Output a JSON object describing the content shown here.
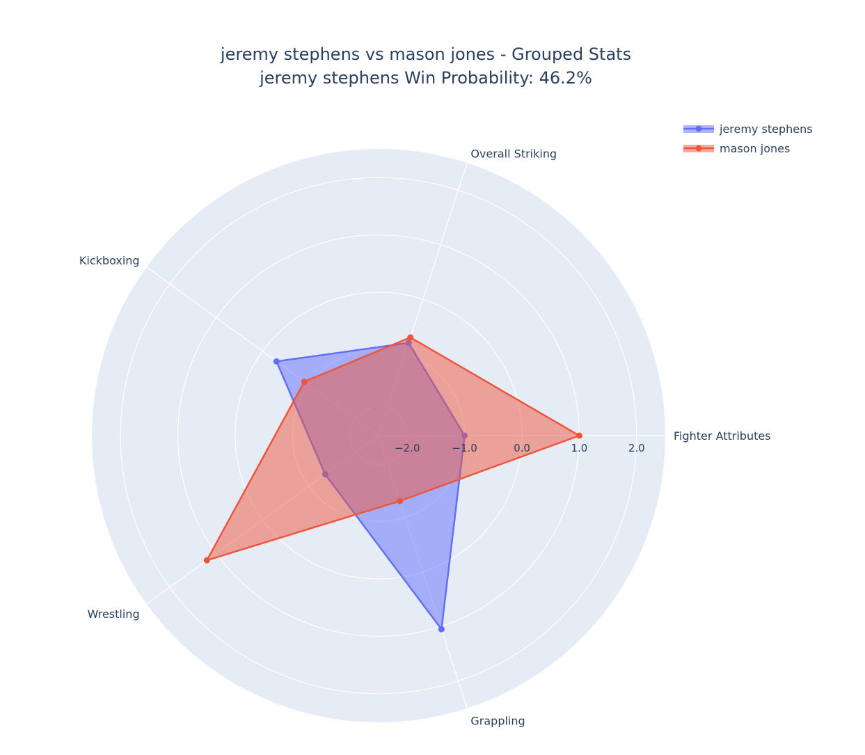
{
  "chart_data": {
    "type": "radar",
    "title": "jeremy stephens vs mason jones - Grouped Stats",
    "subtitle": "jeremy stephens Win Probability: 46.2%",
    "categories": [
      "Fighter Attributes",
      "Overall Striking",
      "Kickboxing",
      "Wrestling",
      "Grappling"
    ],
    "radial_range": [
      -2.5,
      2.5
    ],
    "radial_ticks": [
      -2.0,
      -1.0,
      0.0,
      1.0,
      2.0
    ],
    "radial_tick_labels": [
      "−2.0",
      "−1.0",
      "0.0",
      "1.0",
      "2.0"
    ],
    "series": [
      {
        "name": "jeremy stephens",
        "values": [
          -1.0,
          -0.8,
          -0.3,
          -1.35,
          1.05
        ],
        "color": "#636efa"
      },
      {
        "name": "mason jones",
        "values": [
          1.0,
          -0.7,
          -0.9,
          1.2,
          -1.3
        ],
        "color": "#ef553b"
      }
    ],
    "legend_position": "top-right",
    "grid": true,
    "background_color": "#e5ecf6"
  }
}
